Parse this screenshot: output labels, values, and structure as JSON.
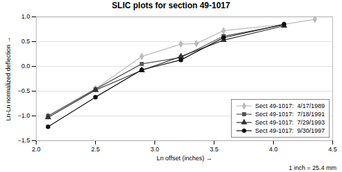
{
  "chart_data": {
    "type": "line",
    "title": "SLIC plots for section 49-1017",
    "xlabel": "Ln offset (inches)",
    "ylabel": "Ln-Ln normalized deflection",
    "footnote": "1 inch = 25.4 mm",
    "xlim": [
      2.0,
      4.5
    ],
    "ylim": [
      -1.5,
      1.0
    ],
    "xticks": [
      {
        "value": 2.0,
        "label": "2.0"
      },
      {
        "value": 2.5,
        "label": "2.5"
      },
      {
        "value": 3.0,
        "label": "3.0"
      },
      {
        "value": 3.5,
        "label": "3.5"
      },
      {
        "value": 4.0,
        "label": "4.0"
      },
      {
        "value": 4.5,
        "label": "4.5"
      }
    ],
    "yticks": [
      {
        "value": -1.5,
        "label": "−1.5"
      },
      {
        "value": -1.0,
        "label": "−1.0"
      },
      {
        "value": -0.5,
        "label": "−0.5"
      },
      {
        "value": 0.0,
        "label": "0.0"
      },
      {
        "value": 0.5,
        "label": "0.5"
      },
      {
        "value": 1.0,
        "label": "1.0"
      }
    ],
    "grid": true,
    "legend": "lower right",
    "series": [
      {
        "name": "Sect 49-1017:  4/17/1989",
        "color": "#bbbbbb",
        "marker": "diamond",
        "line_style": "solid",
        "x": [
          2.1,
          2.5,
          2.89,
          3.22,
          3.35,
          3.58,
          4.09,
          4.35
        ],
        "values": [
          -1.0,
          -0.45,
          0.2,
          0.45,
          0.46,
          0.72,
          0.85,
          0.95
        ]
      },
      {
        "name": "Sect 49-1017:  7/18/1991",
        "color": "#555555",
        "marker": "square",
        "line_style": "solid",
        "x": [
          2.1,
          2.5,
          2.89,
          3.22,
          3.58,
          4.09
        ],
        "values": [
          -1.0,
          -0.46,
          0.05,
          0.18,
          0.61,
          0.84
        ]
      },
      {
        "name": "Sect 49-1017:  7/29/1993",
        "color": "#333333",
        "marker": "triangle",
        "line_style": "solid",
        "x": [
          2.1,
          2.5,
          2.89,
          3.22,
          3.58,
          4.09
        ],
        "values": [
          -1.03,
          -0.48,
          -0.08,
          0.2,
          0.53,
          0.82
        ]
      },
      {
        "name": "Sect 49-1017:  9/30/1997",
        "color": "#111111",
        "marker": "circle",
        "line_style": "solid",
        "x": [
          2.1,
          2.5,
          2.89,
          3.22,
          3.58,
          4.09
        ],
        "values": [
          -1.22,
          -0.62,
          -0.07,
          0.13,
          0.58,
          0.85
        ]
      }
    ]
  }
}
